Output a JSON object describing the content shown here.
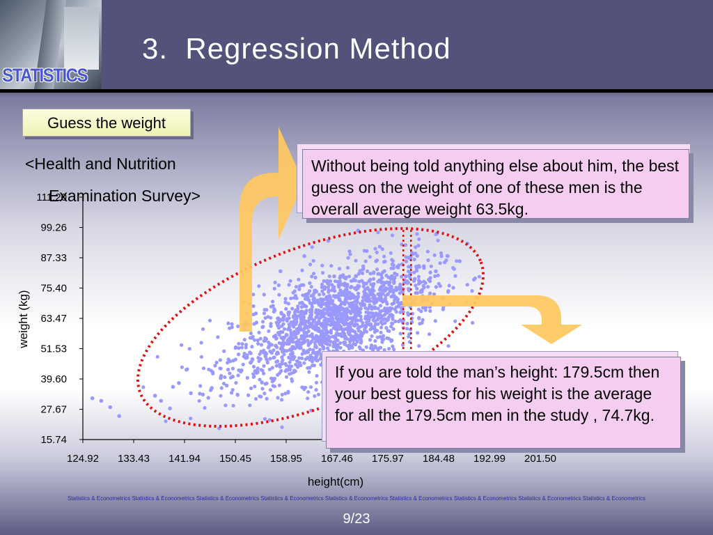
{
  "header": {
    "logo_text": "STATISTICS",
    "title": "3.  Regression Method"
  },
  "button": {
    "label": "Guess the weight"
  },
  "subtitle": {
    "line1": "<Health and Nutrition",
    "line2": "Examination Survey>"
  },
  "callout1": {
    "text": "Without being told anything else about him, the best guess on the weight of one of these men is the overall average weight 63.5kg."
  },
  "callout2": {
    "text": "If you are told the man’s height: 179.5cm then your best guess for his weight is the average for all the 179.5cm men in the study , 74.7kg."
  },
  "footer": {
    "text": "Statistics & Econometrics Statistics & Econometrics Statistics & Econometrics Statistics & Econometrics Statistics & Econometrics Statistics & Econometrics Statistics & Econometrics Statistics & Econometrics Statistics & Econometrics",
    "page": "9/23"
  },
  "colors": {
    "points": "#9999ff",
    "ellipse": "#e01010",
    "arrow": "#ffc860",
    "header": "#52527a"
  },
  "chart_data": {
    "type": "scatter",
    "xlabel": "height(cm)",
    "ylabel": "weight (kg)",
    "x_ticks": [
      124.92,
      133.43,
      141.94,
      150.45,
      158.95,
      167.46,
      175.97,
      184.48,
      192.99,
      201.5
    ],
    "y_ticks": [
      15.74,
      27.67,
      39.6,
      51.53,
      63.47,
      75.4,
      87.33,
      99.26,
      111.2
    ],
    "x_tick_labels": [
      "124.92",
      "133.43",
      "141.94",
      "150.45",
      "158.95",
      "167.46",
      "175.97",
      "184.48",
      "192.99",
      "201.50"
    ],
    "y_tick_labels": [
      "15.74",
      "27.67",
      "39.60",
      "51.53",
      "63.47",
      "75.40",
      "87.33",
      "99.26",
      "111.20"
    ],
    "xlim": [
      124.92,
      201.5
    ],
    "ylim": [
      15.74,
      111.2
    ],
    "mean_weight": 63.5,
    "given_height": 179.5,
    "conditional_mean_weight": 74.7,
    "trend": {
      "slope": 0.85,
      "intercept": -80.0
    },
    "points": [
      [
        126.5,
        32.0
      ],
      [
        128.0,
        31.0
      ],
      [
        129.5,
        28.5
      ],
      [
        131.0,
        25.0
      ],
      [
        137.0,
        33.0
      ],
      [
        138.0,
        31.0
      ],
      [
        139.5,
        28.0
      ],
      [
        140.0,
        36.5
      ],
      [
        141.0,
        38.0
      ],
      [
        143.0,
        34.0
      ],
      [
        145.0,
        33.5
      ],
      [
        146.5,
        36.0
      ],
      [
        148.0,
        40.0
      ],
      [
        149.0,
        37.0
      ],
      [
        150.0,
        40.5
      ],
      [
        151.5,
        43.0
      ],
      [
        153.0,
        46.0
      ],
      [
        154.0,
        42.0
      ],
      [
        155.5,
        48.5
      ],
      [
        156.0,
        52.0
      ],
      [
        157.5,
        50.0
      ],
      [
        158.5,
        54.0
      ],
      [
        159.0,
        57.0
      ],
      [
        160.0,
        55.5
      ],
      [
        161.0,
        58.0
      ],
      [
        161.5,
        62.0
      ],
      [
        162.5,
        60.0
      ],
      [
        163.0,
        64.5
      ],
      [
        164.0,
        61.5
      ],
      [
        165.0,
        66.0
      ],
      [
        166.0,
        63.0
      ],
      [
        167.0,
        68.0
      ],
      [
        168.0,
        65.0
      ],
      [
        169.0,
        70.0
      ],
      [
        170.0,
        67.5
      ],
      [
        171.0,
        72.0
      ],
      [
        172.0,
        69.0
      ],
      [
        173.0,
        74.0
      ],
      [
        174.0,
        71.0
      ],
      [
        175.0,
        76.0
      ],
      [
        176.0,
        73.0
      ],
      [
        177.0,
        78.0
      ],
      [
        178.0,
        75.0
      ],
      [
        179.0,
        80.0
      ],
      [
        179.5,
        74.5
      ],
      [
        180.5,
        79.0
      ],
      [
        182.0,
        84.0
      ],
      [
        184.0,
        82.0
      ],
      [
        186.0,
        88.0
      ],
      [
        188.0,
        86.0
      ],
      [
        162.0,
        88.0
      ],
      [
        158.0,
        82.0
      ],
      [
        152.0,
        70.0
      ],
      [
        175.0,
        56.0
      ],
      [
        170.0,
        52.0
      ],
      [
        180.0,
        62.0
      ],
      [
        166.0,
        94.0
      ],
      [
        171.0,
        98.0
      ],
      [
        183.0,
        68.0
      ],
      [
        160.0,
        48.0
      ],
      [
        155.0,
        60.0
      ],
      [
        167.0,
        80.0
      ],
      [
        174.0,
        86.0
      ],
      [
        164.0,
        74.0
      ]
    ],
    "grid": false
  }
}
